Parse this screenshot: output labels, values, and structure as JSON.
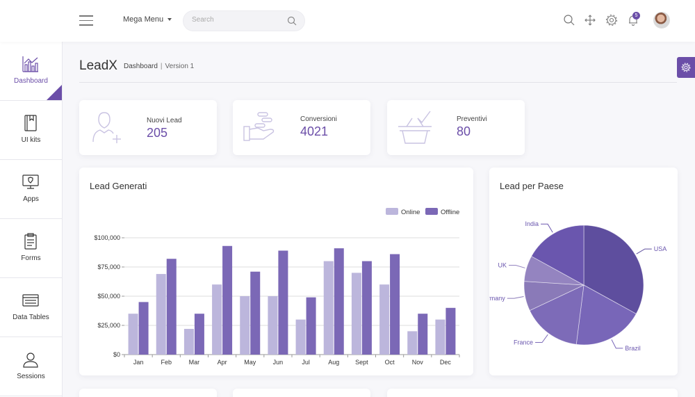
{
  "topbar": {
    "mega_menu_label": "Mega Menu",
    "search_placeholder": "Search",
    "notification_count": "5"
  },
  "sidebar": {
    "items": [
      {
        "label": "Dashboard",
        "icon": "bar-chart-icon",
        "active": true
      },
      {
        "label": "UI kits",
        "icon": "book-icon"
      },
      {
        "label": "Apps",
        "icon": "monitor-icon"
      },
      {
        "label": "Forms",
        "icon": "clipboard-icon"
      },
      {
        "label": "Data Tables",
        "icon": "table-icon"
      },
      {
        "label": "Sessions",
        "icon": "user-icon"
      }
    ]
  },
  "header": {
    "title": "LeadX",
    "breadcrumb_current": "Dashboard",
    "breadcrumb_separator": "|",
    "version": "Version 1"
  },
  "stats": [
    {
      "label": "Nuovi Lead",
      "value": "205",
      "icon": "add-user-icon"
    },
    {
      "label": "Conversioni",
      "value": "4021",
      "icon": "hand-coins-icon"
    },
    {
      "label": "Preventivi",
      "value": "80",
      "icon": "basket-check-icon"
    }
  ],
  "cards": {
    "bar_title": "Lead Generati",
    "pie_title": "Lead per Paese"
  },
  "colors": {
    "accent": "#6b4ea8",
    "online": "#bcb6dc",
    "offline": "#7b68b6"
  },
  "chart_data": [
    {
      "type": "bar",
      "title": "Lead Generati",
      "categories": [
        "Jan",
        "Feb",
        "Mar",
        "Apr",
        "May",
        "Jun",
        "Jul",
        "Aug",
        "Sept",
        "Oct",
        "Nov",
        "Dec"
      ],
      "series": [
        {
          "name": "Online",
          "values": [
            35000,
            69000,
            22000,
            60000,
            50000,
            50000,
            30000,
            80000,
            70000,
            60000,
            20000,
            30000
          ]
        },
        {
          "name": "Offline",
          "values": [
            45000,
            82000,
            35000,
            93000,
            71000,
            89000,
            49000,
            91000,
            80000,
            86000,
            35000,
            40000
          ]
        }
      ],
      "yticks": [
        "$0",
        "$25,000",
        "$50,000",
        "$75,000",
        "$100,000"
      ],
      "ylim": [
        0,
        100000
      ],
      "legend": "top-right",
      "grid": true
    },
    {
      "type": "pie",
      "title": "Lead per Paese",
      "labels": [
        "USA",
        "Brazil",
        "France",
        "Germany",
        "UK",
        "India"
      ],
      "values": [
        33,
        19,
        16,
        8,
        7,
        17
      ]
    }
  ]
}
